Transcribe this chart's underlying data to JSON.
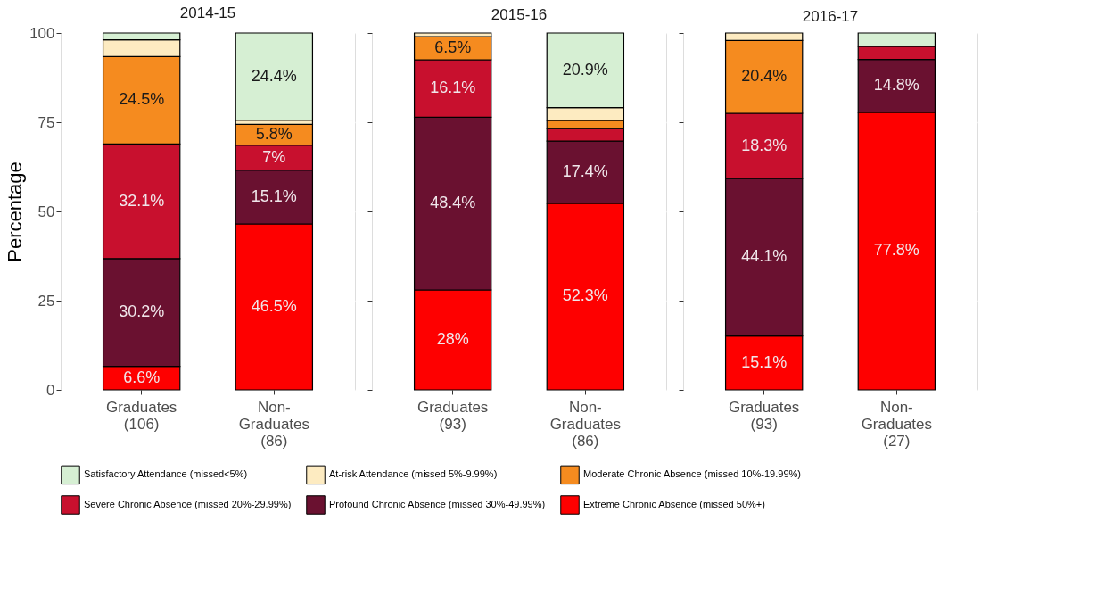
{
  "chart_data": [
    {
      "type": "bar",
      "stacked": true,
      "title": "2014-15",
      "ylabel": "Percentage",
      "categories": [
        "Graduates\n(106)",
        "Non-\nGraduates\n(86)"
      ],
      "ylim": [
        0,
        100
      ],
      "yticks": [
        0,
        25,
        50,
        75,
        100
      ],
      "grid": true,
      "legend": "bottom",
      "series": [
        {
          "name": "Extreme Chronic Absence (missed 50%+)",
          "color": "#fe0000",
          "values": [
            6.6,
            46.5
          ],
          "value_labels": [
            "6.6%",
            "46.5%"
          ]
        },
        {
          "name": "Profound Chronic Absence (missed 30%-49.99%)",
          "color": "#6a1130",
          "values": [
            30.2,
            15.1
          ],
          "value_labels": [
            "30.2%",
            "15.1%"
          ]
        },
        {
          "name": "Severe Chronic Absence (missed 20%-29.99%)",
          "color": "#c8102e",
          "values": [
            32.1,
            7
          ],
          "value_labels": [
            "32.1%",
            "7%"
          ]
        },
        {
          "name": "Moderate Chronic Absence (missed 10%-19.99%)",
          "color": "#f58b1f",
          "values": [
            24.5,
            5.8
          ],
          "value_labels": [
            "24.5%",
            "5.8%"
          ]
        },
        {
          "name": "At-risk Attendance (missed 5%-9.99%)",
          "color": "#fdebc1",
          "values": [
            4.7,
            1.2
          ],
          "value_labels": [
            null,
            null
          ]
        },
        {
          "name": "Satisfactory Attendance (missed<5%)",
          "color": "#d6efd3",
          "values": [
            1.9,
            24.4
          ],
          "value_labels": [
            null,
            "24.4%"
          ]
        }
      ]
    },
    {
      "type": "bar",
      "stacked": true,
      "title": "2015-16",
      "tick_labels": "x",
      "categories": [
        "Graduates\n(93)",
        "Non-\nGraduates\n(86)"
      ],
      "ylim": [
        0,
        100
      ],
      "yticks": [
        0,
        25,
        50,
        75,
        100
      ],
      "grid": true,
      "legend": "bottom",
      "series": [
        {
          "name": "Extreme Chronic Absence (missed 50%+)",
          "color": "#fe0000",
          "values": [
            28,
            52.3
          ],
          "value_labels": [
            "28%",
            "52.3%"
          ]
        },
        {
          "name": "Profound Chronic Absence (missed 30%-49.99%)",
          "color": "#6a1130",
          "values": [
            48.4,
            17.4
          ],
          "value_labels": [
            "48.4%",
            "17.4%"
          ]
        },
        {
          "name": "Severe Chronic Absence (missed 20%-29.99%)",
          "color": "#c8102e",
          "values": [
            16.1,
            3.5
          ],
          "value_labels": [
            "16.1%",
            null
          ]
        },
        {
          "name": "Moderate Chronic Absence (missed 10%-19.99%)",
          "color": "#f58b1f",
          "values": [
            6.5,
            2.3
          ],
          "value_labels": [
            "6.5%",
            null
          ]
        },
        {
          "name": "At-risk Attendance (missed 5%-9.99%)",
          "color": "#fdebc1",
          "values": [
            1.0,
            3.6
          ],
          "value_labels": [
            null,
            null
          ]
        },
        {
          "name": "Satisfactory Attendance (missed<5%)",
          "color": "#d6efd3",
          "values": [
            null,
            20.9
          ],
          "value_labels": [
            null,
            "20.9%"
          ]
        }
      ]
    },
    {
      "type": "bar",
      "stacked": true,
      "title": "2016-17",
      "tick_labels": "x",
      "categories": [
        "Graduates\n(93)",
        "Non-\nGraduates\n(27)"
      ],
      "ylim": [
        0,
        100
      ],
      "yticks": [
        0,
        25,
        50,
        75,
        100
      ],
      "grid": true,
      "legend": "bottom",
      "series": [
        {
          "name": "Extreme Chronic Absence (missed 50%+)",
          "color": "#fe0000",
          "values": [
            15.1,
            77.8
          ],
          "value_labels": [
            "15.1%",
            "77.8%"
          ]
        },
        {
          "name": "Profound Chronic Absence (missed 30%-49.99%)",
          "color": "#6a1130",
          "values": [
            44.1,
            14.8
          ],
          "value_labels": [
            "44.1%",
            "14.8%"
          ]
        },
        {
          "name": "Severe Chronic Absence (missed 20%-29.99%)",
          "color": "#c8102e",
          "values": [
            18.3,
            3.7
          ],
          "value_labels": [
            "18.3%",
            null
          ]
        },
        {
          "name": "Moderate Chronic Absence (missed 10%-19.99%)",
          "color": "#f58b1f",
          "values": [
            20.4,
            null
          ],
          "value_labels": [
            "20.4%",
            null
          ]
        },
        {
          "name": "At-risk Attendance (missed 5%-9.99%)",
          "color": "#fdebc1",
          "values": [
            2.1,
            null
          ],
          "value_labels": [
            null,
            null
          ]
        },
        {
          "name": "Satisfactory Attendance (missed<5%)",
          "color": "#d6efd3",
          "values": [
            null,
            3.7
          ],
          "value_labels": [
            null,
            null
          ]
        }
      ]
    }
  ]
}
